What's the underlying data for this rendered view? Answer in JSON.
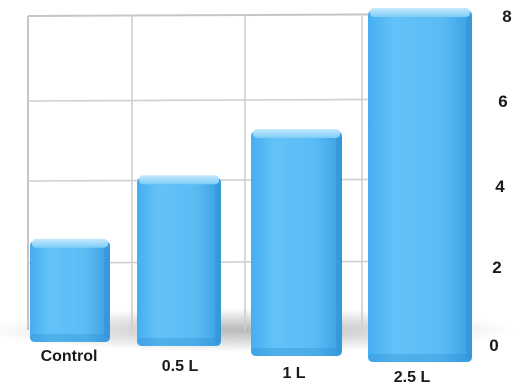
{
  "chart_data": {
    "type": "bar",
    "title": "",
    "xlabel": "",
    "ylabel": "",
    "categories": [
      "Control",
      "0.5 L",
      "1 L",
      "2.5 L"
    ],
    "values": [
      2.7,
      4.5,
      6.0,
      8.0
    ],
    "ylim": [
      0,
      8
    ],
    "yticks": [
      "0",
      "2",
      "4",
      "6",
      "8"
    ],
    "grid": true,
    "bar_color": "#5bbcf4",
    "bar_top_color": "#a9dcfb",
    "bar_shadow_color": "#2e8fd0",
    "grid_color": "#cfcfcf"
  }
}
